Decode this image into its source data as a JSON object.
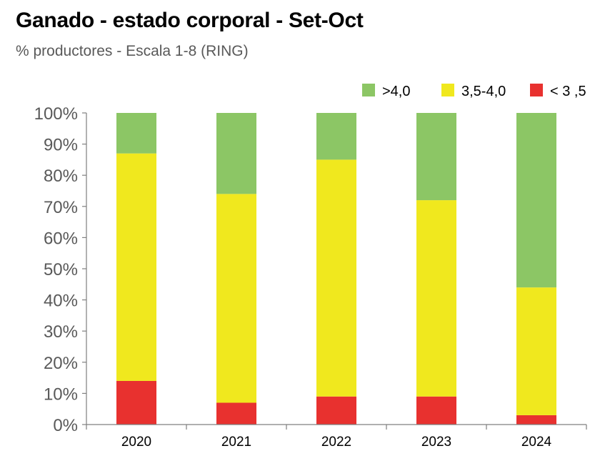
{
  "chart_data": {
    "type": "bar",
    "stacked": true,
    "title": "Ganado - estado corporal - Set-Oct",
    "subtitle": "% productores - Escala 1-8 (RING)",
    "categories": [
      "2020",
      "2021",
      "2022",
      "2023",
      "2024"
    ],
    "series": [
      {
        "name": "< 3 ,5",
        "color": "#e8312f",
        "values": [
          14,
          7,
          9,
          9,
          3
        ]
      },
      {
        "name": "3,5-4,0",
        "color": "#f0e81e",
        "values": [
          73,
          67,
          76,
          63,
          41
        ]
      },
      {
        "name": ">4,0",
        "color": "#8cc665",
        "values": [
          13,
          26,
          15,
          28,
          56
        ]
      }
    ],
    "legend_order": [
      ">4,0",
      "3,5-4,0",
      "< 3 ,5"
    ],
    "legend_position": "top-right",
    "yticks": [
      "0%",
      "10%",
      "20%",
      "30%",
      "40%",
      "50%",
      "60%",
      "70%",
      "80%",
      "90%",
      "100%"
    ],
    "ylim": [
      0,
      100
    ],
    "xlabel": "",
    "ylabel": "",
    "grid": false
  }
}
